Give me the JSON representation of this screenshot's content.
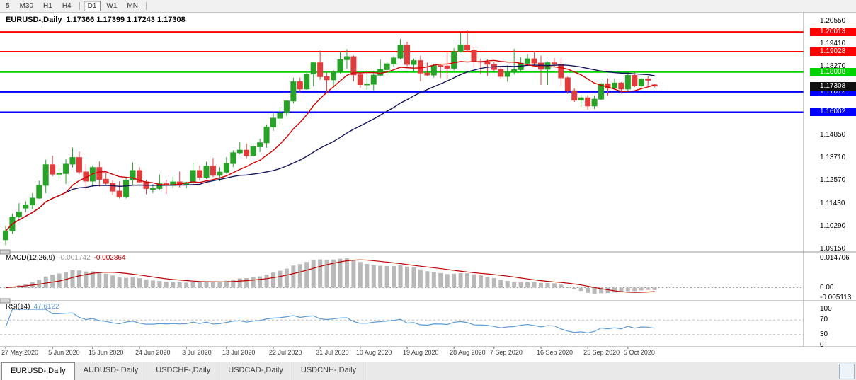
{
  "toolbar": {
    "timeframes": [
      {
        "label": "5",
        "active": false,
        "divider_after": false
      },
      {
        "label": "M30",
        "active": false,
        "divider_after": false
      },
      {
        "label": "H1",
        "active": false,
        "divider_after": false
      },
      {
        "label": "H4",
        "active": false,
        "divider_after": true
      },
      {
        "label": "D1",
        "active": true,
        "divider_after": false
      },
      {
        "label": "W1",
        "active": false,
        "divider_after": false
      },
      {
        "label": "MN",
        "active": false,
        "divider_after": true
      }
    ]
  },
  "chart": {
    "symbol": "EURUSD-,Daily",
    "ohlc": "1.17366 1.17399 1.17243 1.17308",
    "current_price": {
      "label": "1.17308",
      "price": 1.17308,
      "color": "#111111"
    },
    "axis_labels": [
      {
        "label": "1.20550",
        "price": 1.2055
      },
      {
        "label": "1.19410",
        "price": 1.1941
      },
      {
        "label": "1.18270",
        "price": 1.1827
      },
      {
        "label": "1.14850",
        "price": 1.1485
      },
      {
        "label": "1.13710",
        "price": 1.1371
      },
      {
        "label": "1.12570",
        "price": 1.1257
      },
      {
        "label": "1.11430",
        "price": 1.1143
      },
      {
        "label": "1.10290",
        "price": 1.1029
      },
      {
        "label": "1.09150",
        "price": 1.0915
      }
    ],
    "hlines": [
      {
        "label": "1.20013",
        "price": 1.20013,
        "color": "#ff0000"
      },
      {
        "label": "1.19028",
        "price": 1.19028,
        "color": "#ff0000"
      },
      {
        "label": "1.18008",
        "price": 1.18008,
        "color": "#00d300"
      },
      {
        "label": "1.17012",
        "price": 1.17012,
        "color": "#0000ff"
      },
      {
        "label": "1.16002",
        "price": 1.16002,
        "color": "#0000ff"
      }
    ],
    "colors": {
      "up": "#27a327",
      "down": "#e03c3c",
      "ma_fast": "#d40000",
      "ma_slow": "#14145e"
    }
  },
  "macd": {
    "name": "MACD(12,26,9)",
    "value_main": "-0.001742",
    "value_signal": "-0.002864",
    "axis": {
      "max": "0.014706",
      "zero": "0.00",
      "min": "-0.005113"
    },
    "colors": {
      "hist": "#b9b9b9",
      "signal": "#c00000"
    }
  },
  "rsi": {
    "name": "RSI(14)",
    "value": "47.6122",
    "axis": [
      {
        "label": "100",
        "value": 100
      },
      {
        "label": "70",
        "value": 70
      },
      {
        "label": "30",
        "value": 30
      },
      {
        "label": "0",
        "value": 0
      }
    ],
    "levels": [
      70,
      30
    ],
    "color": "#5b9bd5"
  },
  "time_axis": {
    "ticks": [
      {
        "label": "27 May 2020",
        "index": 0
      },
      {
        "label": "5 Jun 2020",
        "index": 7
      },
      {
        "label": "15 Jun 2020",
        "index": 13
      },
      {
        "label": "24 Jun 2020",
        "index": 20
      },
      {
        "label": "3 Jul 2020",
        "index": 27
      },
      {
        "label": "13 Jul 2020",
        "index": 33
      },
      {
        "label": "22 Jul 2020",
        "index": 40
      },
      {
        "label": "31 Jul 2020",
        "index": 47
      },
      {
        "label": "10 Aug 2020",
        "index": 53
      },
      {
        "label": "19 Aug 2020",
        "index": 60
      },
      {
        "label": "28 Aug 2020",
        "index": 67
      },
      {
        "label": "7 Sep 2020",
        "index": 73
      },
      {
        "label": "16 Sep 2020",
        "index": 80
      },
      {
        "label": "25 Sep 2020",
        "index": 87
      },
      {
        "label": "5 Oct 2020",
        "index": 93
      }
    ]
  },
  "tabs": [
    {
      "label": "EURUSD-,Daily",
      "active": true
    },
    {
      "label": "AUDUSD-,Daily",
      "active": false
    },
    {
      "label": "USDCHF-,Daily",
      "active": false
    },
    {
      "label": "USDCAD-,Daily",
      "active": false
    },
    {
      "label": "USDCNH-,Daily",
      "active": false
    }
  ],
  "chart_data": {
    "type": "candlestick",
    "symbol": "EURUSD",
    "timeframe": "Daily",
    "title": "EURUSD-,Daily",
    "ohlc_last": {
      "open": 1.17366,
      "high": 1.17399,
      "low": 1.17243,
      "close": 1.17308
    },
    "ylim": [
      1.0915,
      1.2055
    ],
    "ma_fast_period": 10,
    "ma_slow_period": 30,
    "macd_params": [
      12,
      26,
      9
    ],
    "rsi_period": 14,
    "candles": [
      [
        1.0962,
        1.1031,
        1.0935,
        1.1006
      ],
      [
        1.1006,
        1.1093,
        1.0992,
        1.1076
      ],
      [
        1.1076,
        1.1145,
        1.1069,
        1.1101
      ],
      [
        1.112,
        1.1154,
        1.1101,
        1.1136
      ],
      [
        1.1136,
        1.1195,
        1.1115,
        1.117
      ],
      [
        1.117,
        1.1257,
        1.1167,
        1.1234
      ],
      [
        1.1234,
        1.1362,
        1.1195,
        1.1337
      ],
      [
        1.1337,
        1.1383,
        1.1279,
        1.129
      ],
      [
        1.129,
        1.132,
        1.1268,
        1.1293
      ],
      [
        1.1293,
        1.1366,
        1.1241,
        1.134
      ],
      [
        1.134,
        1.1422,
        1.1323,
        1.1373
      ],
      [
        1.1373,
        1.1403,
        1.129,
        1.1301
      ],
      [
        1.1301,
        1.134,
        1.1212,
        1.1255
      ],
      [
        1.1255,
        1.1333,
        1.1227,
        1.1323
      ],
      [
        1.1323,
        1.1353,
        1.1228,
        1.1264
      ],
      [
        1.1264,
        1.1296,
        1.1233,
        1.1244
      ],
      [
        1.1244,
        1.1262,
        1.1185,
        1.1205
      ],
      [
        1.1205,
        1.1254,
        1.1168,
        1.1177
      ],
      [
        1.1177,
        1.127,
        1.1168,
        1.126
      ],
      [
        1.126,
        1.1348,
        1.1232,
        1.1308
      ],
      [
        1.1308,
        1.1325,
        1.1247,
        1.1251
      ],
      [
        1.1251,
        1.1261,
        1.119,
        1.1218
      ],
      [
        1.1218,
        1.124,
        1.1194,
        1.1218
      ],
      [
        1.1218,
        1.1288,
        1.1209,
        1.1242
      ],
      [
        1.1242,
        1.1262,
        1.119,
        1.1234
      ],
      [
        1.1234,
        1.1276,
        1.1218,
        1.1251
      ],
      [
        1.1251,
        1.1303,
        1.1224,
        1.1239
      ],
      [
        1.1239,
        1.1252,
        1.1219,
        1.1248
      ],
      [
        1.1248,
        1.1346,
        1.1242,
        1.1308
      ],
      [
        1.1308,
        1.1333,
        1.126,
        1.1274
      ],
      [
        1.1274,
        1.1352,
        1.1266,
        1.133
      ],
      [
        1.133,
        1.1371,
        1.1275,
        1.1284
      ],
      [
        1.1284,
        1.1325,
        1.1254,
        1.13
      ],
      [
        1.13,
        1.1375,
        1.1292,
        1.1343
      ],
      [
        1.1343,
        1.1409,
        1.1325,
        1.1397
      ],
      [
        1.1397,
        1.1452,
        1.139,
        1.141
      ],
      [
        1.141,
        1.1442,
        1.137,
        1.1383
      ],
      [
        1.1383,
        1.1444,
        1.1377,
        1.1427
      ],
      [
        1.1427,
        1.1467,
        1.14,
        1.1447
      ],
      [
        1.1447,
        1.1539,
        1.1422,
        1.1526
      ],
      [
        1.1526,
        1.1601,
        1.1507,
        1.157
      ],
      [
        1.157,
        1.1627,
        1.154,
        1.1596
      ],
      [
        1.1596,
        1.1658,
        1.1581,
        1.1656
      ],
      [
        1.1656,
        1.1772,
        1.1644,
        1.1752
      ],
      [
        1.1752,
        1.1773,
        1.17,
        1.1716
      ],
      [
        1.1716,
        1.1806,
        1.1712,
        1.1791
      ],
      [
        1.1791,
        1.1849,
        1.173,
        1.1847
      ],
      [
        1.1847,
        1.1908,
        1.1762,
        1.1778
      ],
      [
        1.1778,
        1.1797,
        1.1695,
        1.1762
      ],
      [
        1.1762,
        1.181,
        1.1721,
        1.1803
      ],
      [
        1.1803,
        1.1905,
        1.1794,
        1.1863
      ],
      [
        1.1863,
        1.1916,
        1.1818,
        1.1878
      ],
      [
        1.1878,
        1.1884,
        1.1754,
        1.1787
      ],
      [
        1.1787,
        1.18,
        1.1722,
        1.1738
      ],
      [
        1.1738,
        1.1808,
        1.1711,
        1.174
      ],
      [
        1.174,
        1.1807,
        1.171,
        1.1785
      ],
      [
        1.1785,
        1.1864,
        1.1781,
        1.1813
      ],
      [
        1.1813,
        1.185,
        1.1783,
        1.1842
      ],
      [
        1.1842,
        1.188,
        1.1827,
        1.1871
      ],
      [
        1.1871,
        1.1966,
        1.1864,
        1.1934
      ],
      [
        1.1934,
        1.1952,
        1.183,
        1.1839
      ],
      [
        1.1839,
        1.1869,
        1.1801,
        1.1858
      ],
      [
        1.1858,
        1.1882,
        1.1754,
        1.1796
      ],
      [
        1.1796,
        1.1848,
        1.1781,
        1.1786
      ],
      [
        1.1786,
        1.1843,
        1.1773,
        1.1833
      ],
      [
        1.1833,
        1.1843,
        1.1771,
        1.1831
      ],
      [
        1.1831,
        1.1899,
        1.1763,
        1.182
      ],
      [
        1.182,
        1.192,
        1.1809,
        1.1903
      ],
      [
        1.1903,
        1.1997,
        1.1897,
        1.1936
      ],
      [
        1.1936,
        1.2011,
        1.1899,
        1.1911
      ],
      [
        1.1911,
        1.1928,
        1.1822,
        1.1854
      ],
      [
        1.1854,
        1.1868,
        1.1789,
        1.1851
      ],
      [
        1.1851,
        1.1865,
        1.1781,
        1.184
      ],
      [
        1.184,
        1.1849,
        1.1804,
        1.1814
      ],
      [
        1.1814,
        1.1827,
        1.1765,
        1.1779
      ],
      [
        1.1779,
        1.1834,
        1.1753,
        1.1802
      ],
      [
        1.1802,
        1.1917,
        1.1789,
        1.1813
      ],
      [
        1.1813,
        1.1874,
        1.18,
        1.1845
      ],
      [
        1.1845,
        1.1889,
        1.1838,
        1.1867
      ],
      [
        1.1867,
        1.19,
        1.1838,
        1.1846
      ],
      [
        1.1846,
        1.1883,
        1.1737,
        1.1815
      ],
      [
        1.1815,
        1.1853,
        1.1736,
        1.1847
      ],
      [
        1.1847,
        1.1871,
        1.1826,
        1.184
      ],
      [
        1.184,
        1.1872,
        1.1731,
        1.1772
      ],
      [
        1.1772,
        1.1778,
        1.1692,
        1.1707
      ],
      [
        1.1707,
        1.1719,
        1.1651,
        1.166
      ],
      [
        1.166,
        1.1686,
        1.1626,
        1.1672
      ],
      [
        1.1672,
        1.1685,
        1.1612,
        1.1631
      ],
      [
        1.1631,
        1.1683,
        1.1616,
        1.1665
      ],
      [
        1.1665,
        1.1745,
        1.1661,
        1.1742
      ],
      [
        1.1742,
        1.1769,
        1.1684,
        1.172
      ],
      [
        1.172,
        1.1769,
        1.1712,
        1.1746
      ],
      [
        1.1746,
        1.1751,
        1.1695,
        1.1716
      ],
      [
        1.1716,
        1.1797,
        1.1706,
        1.1784
      ],
      [
        1.1784,
        1.1798,
        1.1725,
        1.1732
      ],
      [
        1.1732,
        1.1771,
        1.1725,
        1.1766
      ],
      [
        1.1766,
        1.1782,
        1.1733,
        1.176
      ],
      [
        1.17366,
        1.17399,
        1.17243,
        1.17308
      ]
    ]
  }
}
